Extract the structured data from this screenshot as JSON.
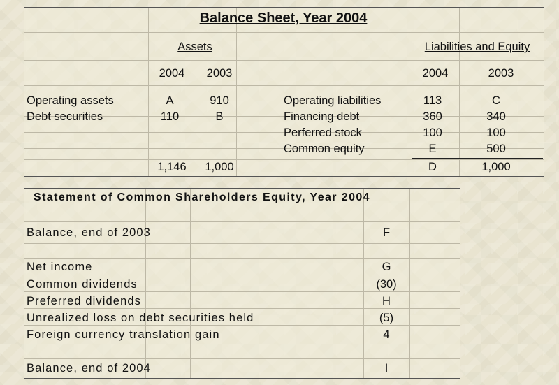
{
  "balance_sheet": {
    "title": "Balance Sheet, Year 2004",
    "assets_header": "Assets",
    "liabilities_header": "Liabilities and Equity",
    "years": [
      "2004",
      "2003"
    ],
    "assets": [
      {
        "label": "Operating assets",
        "y2004": "A",
        "y2003": "910"
      },
      {
        "label": "Debt securities",
        "y2004": "110",
        "y2003": "B"
      }
    ],
    "assets_total": {
      "y2004": "1,146",
      "y2003": "1,000"
    },
    "liabilities": [
      {
        "label": "Operating liabilities",
        "y2004": "113",
        "y2003": "C"
      },
      {
        "label": "Financing debt",
        "y2004": "360",
        "y2003": "340"
      },
      {
        "label": "Perferred stock",
        "y2004": "100",
        "y2003": "100"
      },
      {
        "label": "Common equity",
        "y2004": "E",
        "y2003": "500"
      }
    ],
    "liabilities_total": {
      "y2004": "D",
      "y2003": "1,000"
    }
  },
  "equity_statement": {
    "title": "Statement of Common Shareholders Equity, Year 2004",
    "opening": {
      "label": "Balance, end of 2003",
      "value": "F"
    },
    "items": [
      {
        "label": "Net income",
        "value": "G"
      },
      {
        "label": "Common dividends",
        "value": "(30)"
      },
      {
        "label": "Preferred dividends",
        "value": "H"
      },
      {
        "label": "Unrealized loss on debt securities held",
        "value": "(5)"
      },
      {
        "label": "Foreign currency translation gain",
        "value": "4"
      }
    ],
    "closing": {
      "label": "Balance, end of 2004",
      "value": "I"
    }
  }
}
